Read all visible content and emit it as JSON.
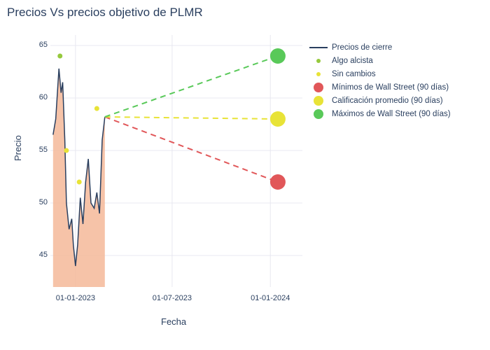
{
  "title": "Precios Vs precios objetivo de PLMR",
  "xlabel": "Fecha",
  "ylabel": "Precio",
  "background_color": "#ffffff",
  "grid_color": "#e8e8f0",
  "text_color": "#2a3f5f",
  "xlim": [
    "2022-11-15",
    "2024-03-01"
  ],
  "ylim": [
    42,
    66
  ],
  "yticks": [
    45,
    50,
    55,
    60,
    65
  ],
  "xticks": [
    {
      "label": "01-01-2023",
      "date": "2023-01-01"
    },
    {
      "label": "01-07-2023",
      "date": "2023-07-01"
    },
    {
      "label": "01-01-2024",
      "date": "2024-01-01"
    }
  ],
  "price_series": {
    "type": "line_area",
    "line_color": "#2a3f5f",
    "line_width": 1.5,
    "fill_color": "#f5b899",
    "fill_opacity": 0.85,
    "points": [
      {
        "x": "2022-11-20",
        "y": 56.5
      },
      {
        "x": "2022-11-25",
        "y": 58.0
      },
      {
        "x": "2022-12-01",
        "y": 62.8
      },
      {
        "x": "2022-12-05",
        "y": 60.5
      },
      {
        "x": "2022-12-08",
        "y": 61.5
      },
      {
        "x": "2022-12-12",
        "y": 56.0
      },
      {
        "x": "2022-12-15",
        "y": 50.0
      },
      {
        "x": "2022-12-20",
        "y": 47.5
      },
      {
        "x": "2022-12-25",
        "y": 48.5
      },
      {
        "x": "2022-12-28",
        "y": 46.0
      },
      {
        "x": "2023-01-01",
        "y": 44.0
      },
      {
        "x": "2023-01-05",
        "y": 46.0
      },
      {
        "x": "2023-01-10",
        "y": 50.5
      },
      {
        "x": "2023-01-15",
        "y": 48.0
      },
      {
        "x": "2023-01-20",
        "y": 52.0
      },
      {
        "x": "2023-01-25",
        "y": 54.2
      },
      {
        "x": "2023-01-30",
        "y": 50.0
      },
      {
        "x": "2023-02-05",
        "y": 49.5
      },
      {
        "x": "2023-02-10",
        "y": 51.0
      },
      {
        "x": "2023-02-15",
        "y": 49.0
      },
      {
        "x": "2023-02-20",
        "y": 56.0
      },
      {
        "x": "2023-02-25",
        "y": 58.2
      }
    ]
  },
  "bullish_markers": {
    "color": "#96c93d",
    "size": 5,
    "points": [
      {
        "x": "2022-12-03",
        "y": 64.0
      }
    ]
  },
  "neutral_markers": {
    "color": "#e8e337",
    "size": 5,
    "points": [
      {
        "x": "2022-12-15",
        "y": 55.0
      },
      {
        "x": "2023-01-08",
        "y": 52.0
      },
      {
        "x": "2023-02-10",
        "y": 59.0
      }
    ]
  },
  "projections": {
    "start": {
      "x": "2023-02-25",
      "y": 58.2
    },
    "end_x": "2024-01-15",
    "dash": "8,6",
    "line_width": 2,
    "marker_size": 11,
    "low": {
      "y": 52.0,
      "color": "#e15759"
    },
    "avg": {
      "y": 58.0,
      "color": "#e8e337"
    },
    "high": {
      "y": 64.0,
      "color": "#59c959"
    }
  },
  "legend": [
    {
      "type": "line",
      "label": "Precios de cierre",
      "color": "#2a3f5f"
    },
    {
      "type": "dot-sm",
      "label": "Algo alcista",
      "color": "#96c93d"
    },
    {
      "type": "dot-sm",
      "label": "Sin cambios",
      "color": "#e8e337"
    },
    {
      "type": "dot-lg",
      "label": "Mínimos de Wall Street (90 días)",
      "color": "#e15759"
    },
    {
      "type": "dot-lg",
      "label": "Calificación promedio (90 días)",
      "color": "#e8e337"
    },
    {
      "type": "dot-lg",
      "label": "Máximos de Wall Street (90 días)",
      "color": "#59c959"
    }
  ]
}
